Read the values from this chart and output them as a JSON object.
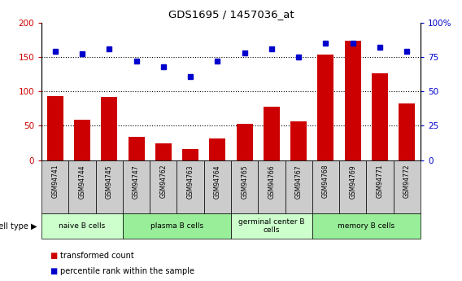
{
  "title": "GDS1695 / 1457036_at",
  "samples": [
    "GSM94741",
    "GSM94744",
    "GSM94745",
    "GSM94747",
    "GSM94762",
    "GSM94763",
    "GSM94764",
    "GSM94765",
    "GSM94766",
    "GSM94767",
    "GSM94768",
    "GSM94769",
    "GSM94771",
    "GSM94772"
  ],
  "transformed_count": [
    93,
    59,
    92,
    34,
    24,
    16,
    32,
    53,
    78,
    56,
    153,
    174,
    126,
    82
  ],
  "percentile_rank": [
    79,
    77,
    81,
    72,
    68,
    61,
    72,
    78,
    81,
    75,
    85,
    85,
    82,
    79
  ],
  "bar_color": "#cc0000",
  "dot_color": "#0000cc",
  "ylim_left": [
    0,
    200
  ],
  "ylim_right": [
    0,
    100
  ],
  "yticks_left": [
    0,
    50,
    100,
    150,
    200
  ],
  "yticks_right": [
    0,
    25,
    50,
    75,
    100
  ],
  "yticklabels_right": [
    "0",
    "25",
    "50",
    "75",
    "100%"
  ],
  "grid_vals": [
    50,
    100,
    150
  ],
  "cell_type_groups": [
    {
      "label": "naive B cells",
      "start": 0,
      "end": 3,
      "color": "#ccffcc"
    },
    {
      "label": "plasma B cells",
      "start": 3,
      "end": 7,
      "color": "#99ee99"
    },
    {
      "label": "germinal center B\ncells",
      "start": 7,
      "end": 10,
      "color": "#ccffcc"
    },
    {
      "label": "memory B cells",
      "start": 10,
      "end": 14,
      "color": "#99ee99"
    }
  ],
  "legend_entries": [
    {
      "label": "transformed count",
      "color": "#cc0000"
    },
    {
      "label": "percentile rank within the sample",
      "color": "#0000cc"
    }
  ],
  "cell_type_label": "cell type",
  "tick_bg_color": "#cccccc",
  "plot_bg_color": "#ffffff",
  "fig_bg_color": "#ffffff"
}
